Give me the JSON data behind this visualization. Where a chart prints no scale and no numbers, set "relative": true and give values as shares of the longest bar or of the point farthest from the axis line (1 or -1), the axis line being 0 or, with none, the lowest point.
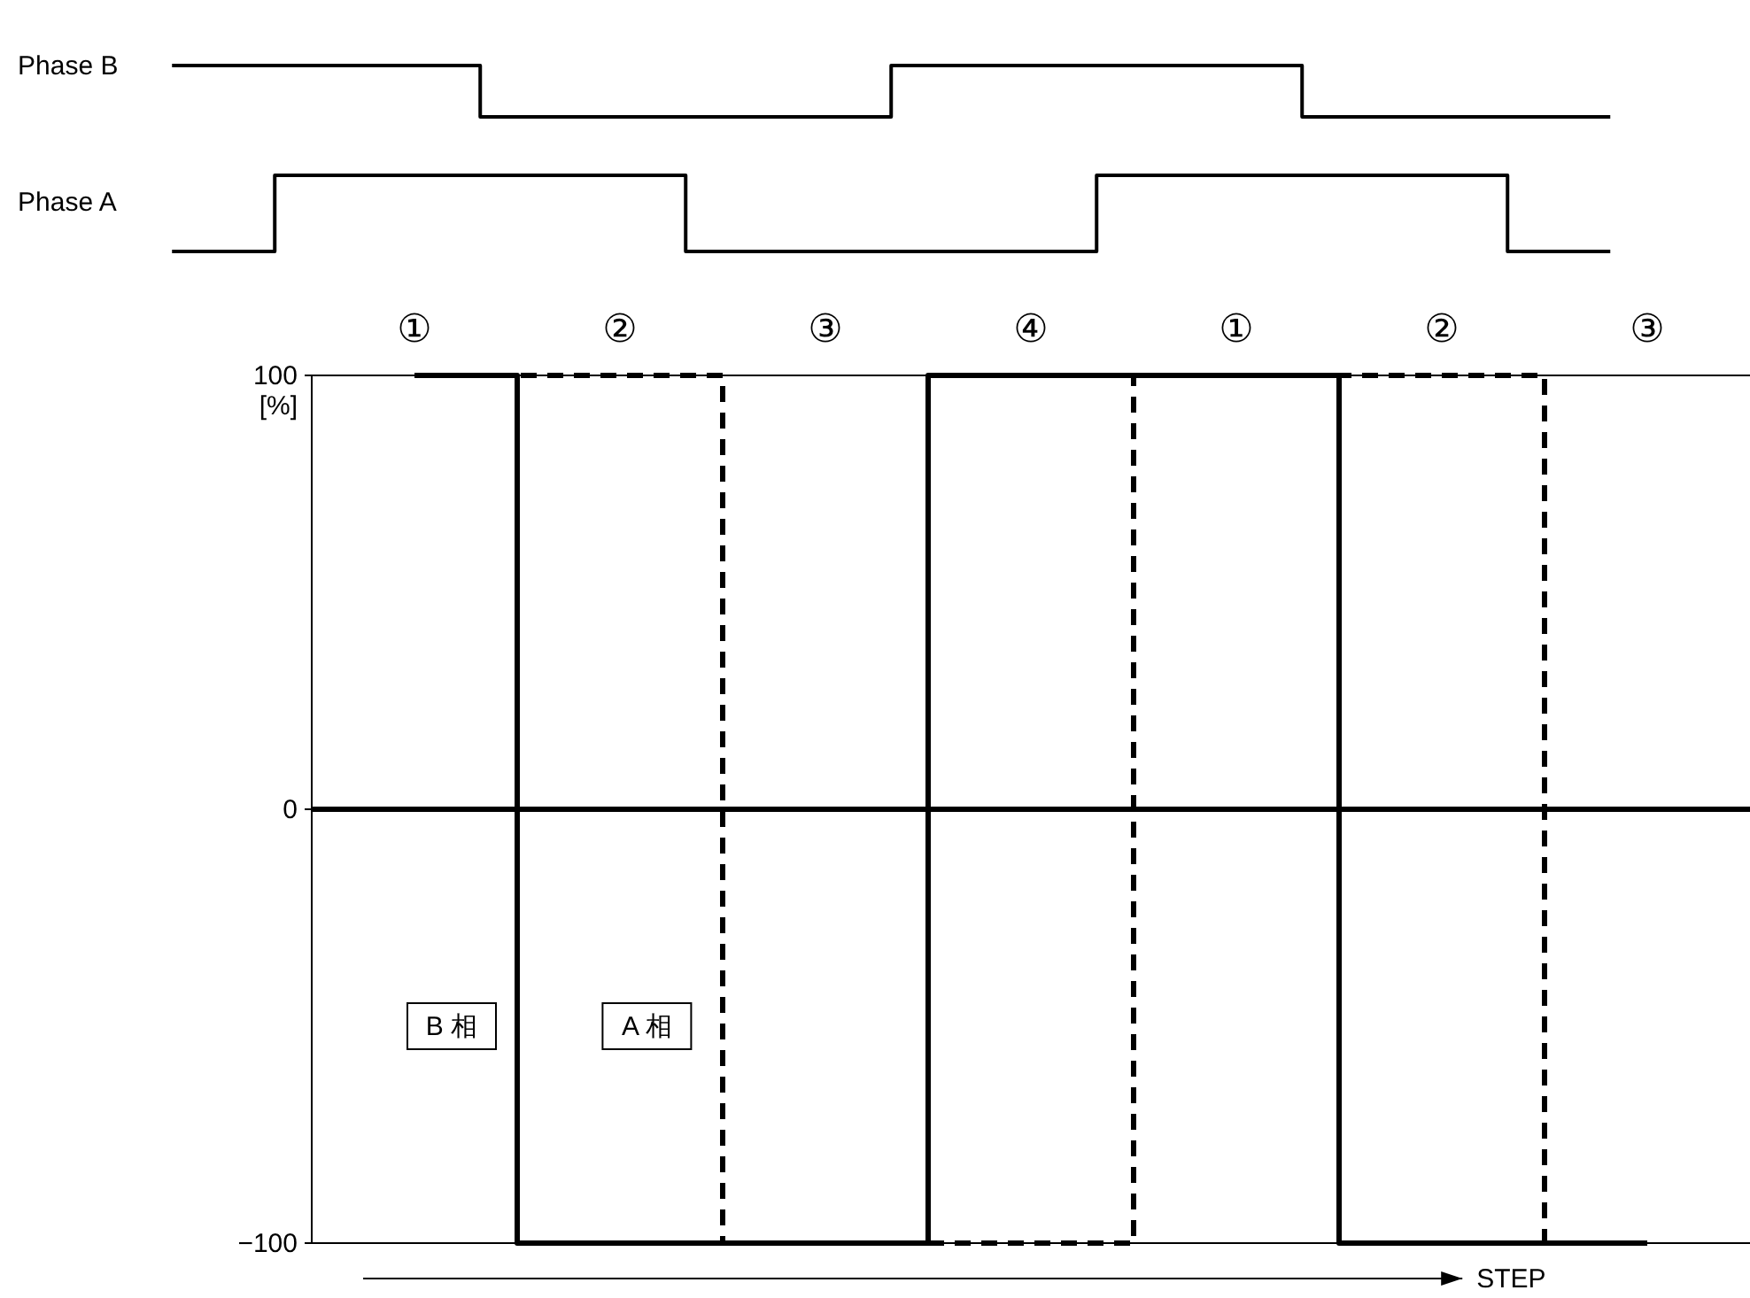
{
  "chart_data": [
    {
      "type": "step",
      "relative": true,
      "categories": [
        null,
        null,
        null,
        null,
        null,
        null,
        null,
        null
      ],
      "series": [
        {
          "name": "Phase B",
          "color": "#000000",
          "values": [
            1,
            1,
            0,
            0,
            1,
            1,
            0,
            0
          ]
        }
      ]
    },
    {
      "type": "step",
      "relative": true,
      "categories": [
        null,
        null,
        null,
        null,
        null,
        null,
        null,
        null
      ],
      "series": [
        {
          "name": "Phase A",
          "color": "#000000",
          "values": [
            0,
            1,
            1,
            0,
            0,
            1,
            1,
            0
          ]
        }
      ]
    },
    {
      "type": "step",
      "categories": [
        "①",
        "②",
        "③",
        "④",
        "①",
        "②",
        "③"
      ],
      "ylim": [
        -100,
        100
      ],
      "yticks": [
        100,
        0,
        {
          "value": -100,
          "label": "−100"
        }
      ],
      "xlabel": "STEP",
      "ylabel": "[%]",
      "ref_lines": [
        {
          "axis": "y",
          "value": 0
        }
      ],
      "series": [
        {
          "name": "B 相",
          "color": "#000000",
          "line_style": "solid",
          "values": [
            100,
            -100,
            -100,
            100,
            100,
            -100,
            -100
          ]
        },
        {
          "name": "A 相",
          "color": "#000000",
          "line_style": "dashed",
          "values": [
            100,
            100,
            -100,
            -100,
            100,
            100,
            -100
          ]
        }
      ]
    }
  ]
}
